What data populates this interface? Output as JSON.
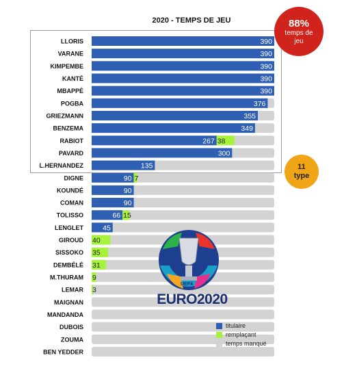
{
  "chart_data": {
    "type": "bar",
    "title": "2020 - TEMPS DE JEU",
    "xlim": [
      0,
      480
    ],
    "categories": [
      "LLORIS",
      "VARANE",
      "KIMPEMBE",
      "KANTÉ",
      "MBAPPÉ",
      "POGBA",
      "GRIEZMANN",
      "BENZEMA",
      "RABIOT",
      "PAVARD",
      "L.HERNANDEZ",
      "DIGNE",
      "KOUNDÉ",
      "COMAN",
      "TOLISSO",
      "LENGLET",
      "GIROUD",
      "SISSOKO",
      "DEMBÉLÉ",
      "M.THURAM",
      "LEMAR",
      "MAIGNAN",
      "MANDANDA",
      "DUBOIS",
      "ZOUMA",
      "BEN YEDDER"
    ],
    "series": [
      {
        "name": "titulaire",
        "values": [
          390,
          390,
          390,
          390,
          390,
          376,
          355,
          349,
          267,
          300,
          135,
          90,
          90,
          90,
          66,
          45,
          0,
          0,
          0,
          0,
          0,
          0,
          0,
          0,
          0,
          0
        ]
      },
      {
        "name": "remplaçant",
        "values": [
          0,
          0,
          0,
          0,
          0,
          0,
          0,
          0,
          38,
          0,
          0,
          7,
          0,
          0,
          15,
          0,
          40,
          35,
          31,
          9,
          3,
          0,
          0,
          0,
          0,
          0
        ]
      },
      {
        "name": "temps manqué",
        "values": [
          0,
          0,
          0,
          0,
          0,
          14,
          35,
          41,
          85,
          90,
          255,
          293,
          300,
          300,
          309,
          345,
          350,
          355,
          359,
          381,
          387,
          390,
          390,
          390,
          390,
          390
        ]
      }
    ],
    "labels_titulaire": [
      "390",
      "390",
      "390",
      "390",
      "390",
      "376",
      "355",
      "349",
      "267",
      "300",
      "135",
      "90",
      "90",
      "90",
      "66",
      "45",
      "",
      "",
      "",
      "",
      "",
      "",
      "",
      "",
      "",
      ""
    ],
    "labels_remplacant": [
      "",
      "",
      "",
      "",
      "",
      "",
      "",
      "",
      "38",
      "",
      "",
      "7",
      "",
      "",
      "15",
      "",
      "40",
      "35",
      "31",
      "9",
      "3",
      "",
      "",
      "",
      "",
      ""
    ],
    "colors": {
      "titulaire": "#2f5fb3",
      "remplacant": "#a6f23c",
      "manque": "#d3d3d3"
    }
  },
  "badges": {
    "pct": "88%",
    "pct_line1": "temps de",
    "pct_line2": "jeu",
    "count_line1": "11",
    "count_line2": "type"
  },
  "logo": {
    "text": "EURO2020",
    "uefa": "UEFA"
  }
}
